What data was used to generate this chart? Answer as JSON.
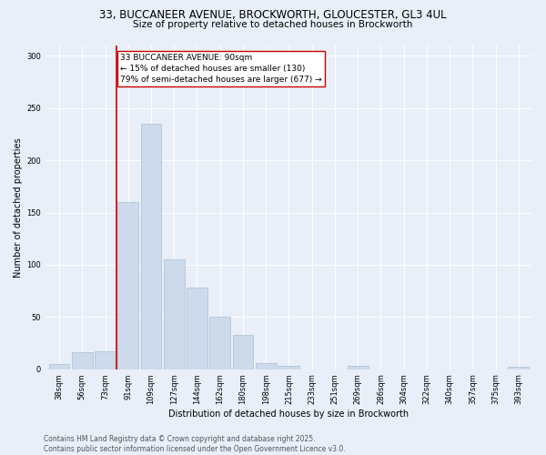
{
  "title_line1": "33, BUCCANEER AVENUE, BROCKWORTH, GLOUCESTER, GL3 4UL",
  "title_line2": "Size of property relative to detached houses in Brockworth",
  "xlabel": "Distribution of detached houses by size in Brockworth",
  "ylabel": "Number of detached properties",
  "categories": [
    "38sqm",
    "56sqm",
    "73sqm",
    "91sqm",
    "109sqm",
    "127sqm",
    "144sqm",
    "162sqm",
    "180sqm",
    "198sqm",
    "215sqm",
    "233sqm",
    "251sqm",
    "269sqm",
    "286sqm",
    "304sqm",
    "322sqm",
    "340sqm",
    "357sqm",
    "375sqm",
    "393sqm"
  ],
  "values": [
    5,
    16,
    17,
    160,
    235,
    105,
    78,
    50,
    33,
    6,
    3,
    0,
    0,
    3,
    0,
    0,
    0,
    0,
    0,
    0,
    2
  ],
  "bar_color": "#ccdaeb",
  "bar_edge_color": "#a8bfd4",
  "vline_color": "#cc0000",
  "annotation_text": "33 BUCCANEER AVENUE: 90sqm\n← 15% of detached houses are smaller (130)\n79% of semi-detached houses are larger (677) →",
  "annotation_box_color": "white",
  "annotation_box_edge_color": "#cc0000",
  "ylim": [
    0,
    310
  ],
  "yticks": [
    0,
    50,
    100,
    150,
    200,
    250,
    300
  ],
  "bg_color": "#e8eff8",
  "plot_bg_color": "#e8eff8",
  "footer_line1": "Contains HM Land Registry data © Crown copyright and database right 2025.",
  "footer_line2": "Contains public sector information licensed under the Open Government Licence v3.0.",
  "title_fontsize": 8.5,
  "subtitle_fontsize": 7.5,
  "axis_label_fontsize": 7,
  "tick_fontsize": 6,
  "annotation_fontsize": 6.5,
  "footer_fontsize": 5.5,
  "vline_index": 3
}
